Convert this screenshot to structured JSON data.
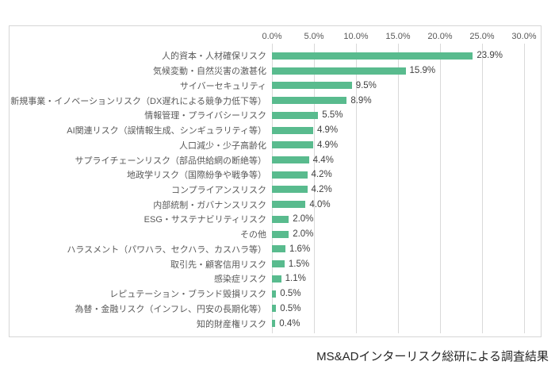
{
  "caption": "MS&ADインターリスク総研による調査結果",
  "colors": {
    "bar": "#59bb8e",
    "gridline": "#d9d9d9",
    "axis_text": "#595959",
    "value_text": "#3f3f3f",
    "frame_border": "#d6d6d6",
    "background": "#ffffff"
  },
  "chart_data": {
    "type": "bar",
    "orientation": "horizontal",
    "title": "",
    "xlabel": "",
    "ylabel": "",
    "x_ticks": [
      "0.0%",
      "5.0%",
      "10.0%",
      "15.0%",
      "20.0%",
      "25.0%",
      "30.0%"
    ],
    "xlim": [
      0,
      30
    ],
    "grid": true,
    "legend": "none",
    "categories": [
      "人的資本・人材確保リスク",
      "気候変動・自然災害の激甚化",
      "サイバーセキュリティ",
      "新規事業・イノベーションリスク（DX遅れによる競争力低下等）",
      "情報管理・プライバシーリスク",
      "AI関連リスク（誤情報生成、シンギュラリティ等）",
      "人口減少・少子高齢化",
      "サプライチェーンリスク（部品供給網の断絶等）",
      "地政学リスク（国際紛争や戦争等）",
      "コンプライアンスリスク",
      "内部統制・ガバナンスリスク",
      "ESG・サステナビリティリスク",
      "その他",
      "ハラスメント（パワハラ、セクハラ、カスハラ等）",
      "取引先・顧客信用リスク",
      "感染症リスク",
      "レピュテーション・ブランド毀損リスク",
      "為替・金融リスク（インフレ、円安の長期化等）",
      "知的財産権リスク"
    ],
    "values": [
      23.9,
      15.9,
      9.5,
      8.9,
      5.5,
      4.9,
      4.9,
      4.4,
      4.2,
      4.2,
      4.0,
      2.0,
      2.0,
      1.6,
      1.5,
      1.1,
      0.5,
      0.5,
      0.4
    ],
    "value_labels": [
      "23.9%",
      "15.9%",
      "9.5%",
      "8.9%",
      "5.5%",
      "4.9%",
      "4.9%",
      "4.4%",
      "4.2%",
      "4.2%",
      "4.0%",
      "2.0%",
      "2.0%",
      "1.6%",
      "1.5%",
      "1.1%",
      "0.5%",
      "0.5%",
      "0.4%"
    ]
  }
}
